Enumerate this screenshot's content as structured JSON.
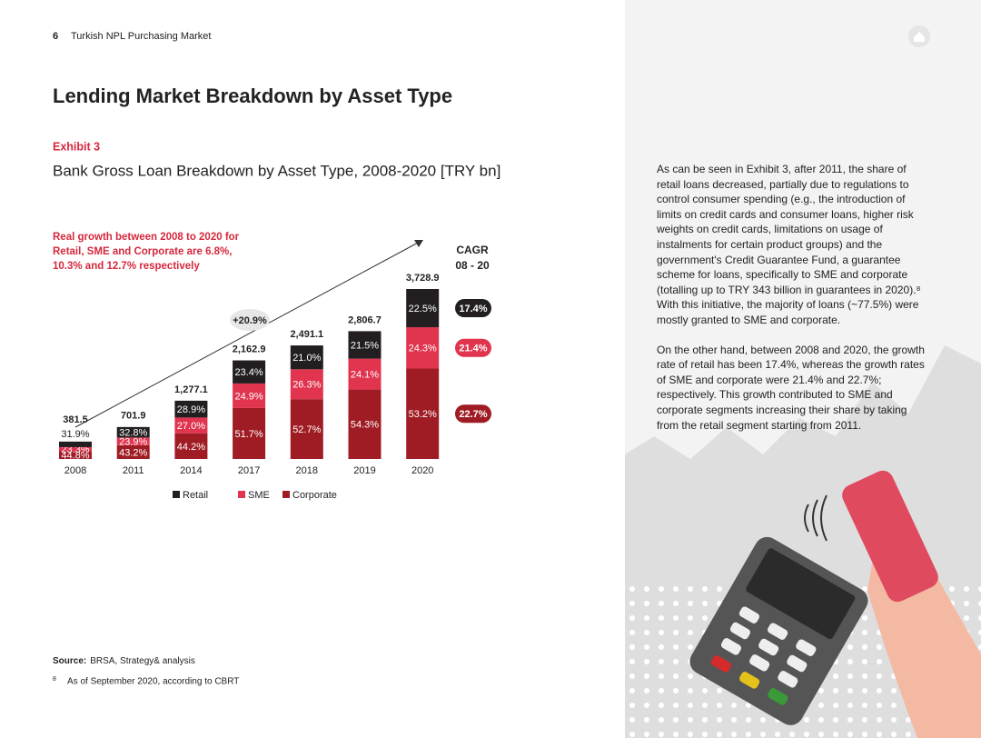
{
  "header": {
    "page_number": "6",
    "title": "Turkish NPL Purchasing Market"
  },
  "title": "Lending Market Breakdown by Asset Type",
  "exhibit": "Exhibit 3",
  "chart_data": {
    "type": "bar",
    "stacked": true,
    "title": "Bank Gross Loan Breakdown by Asset Type, 2008-2020 [TRY bn]",
    "annotation_lines": [
      "Real growth between 2008 to 2020 for",
      "Retail, SME and Corporate are 6.8%,",
      "10.3% and 12.7% respectively"
    ],
    "growth_label": "+20.9%",
    "cagr_title_lines": [
      "CAGR",
      "08 - 20"
    ],
    "categories": [
      "2008",
      "2011",
      "2014",
      "2017",
      "2018",
      "2019",
      "2020"
    ],
    "totals": {
      "values": [
        381.5,
        701.9,
        1277.1,
        2162.9,
        2491.1,
        2806.7,
        3728.9
      ],
      "value_labels": [
        "381.5",
        "701.9",
        "1,277.1",
        "2,162.9",
        "2,491.1",
        "2,806.7",
        "3,728.9"
      ]
    },
    "series": [
      {
        "name": "Retail",
        "color": "#231f20",
        "values": [
          31.9,
          32.8,
          28.9,
          23.4,
          21.0,
          21.5,
          22.5
        ],
        "value_labels": [
          "31.9%",
          "32.8%",
          "28.9%",
          "23.4%",
          "21.0%",
          "21.5%",
          "22.5%"
        ],
        "cagr": 17.4,
        "cagr_label": "17.4%"
      },
      {
        "name": "SME",
        "color": "#e0344f",
        "values": [
          23.3,
          23.9,
          27.0,
          24.9,
          26.3,
          24.1,
          24.3
        ],
        "value_labels": [
          "23.3%",
          "23.9%",
          "27.0%",
          "24.9%",
          "26.3%",
          "24.1%",
          "24.3%"
        ],
        "cagr": 21.4,
        "cagr_label": "21.4%"
      },
      {
        "name": "Corporate",
        "color": "#a01c24",
        "values": [
          44.8,
          43.2,
          44.2,
          51.7,
          52.7,
          54.3,
          53.2
        ],
        "value_labels": [
          "44.8%",
          "43.2%",
          "44.2%",
          "51.7%",
          "52.7%",
          "54.3%",
          "53.2%"
        ],
        "cagr": 22.7,
        "cagr_label": "22.7%"
      }
    ]
  },
  "source": {
    "label": "Source:",
    "text": "BRSA, Strategy& analysis"
  },
  "footnote": {
    "number": "8",
    "text": "As of September 2020, according to CBRT"
  },
  "body": {
    "paragraphs": [
      "As can be seen in Exhibit 3, after 2011, the share of retail loans decreased, partially due to regulations to control consumer spending (e.g., the introduction of limits on credit cards and consumer loans, higher risk weights on credit cards, limitations on usage of instalments for certain product groups) and the government's Credit Guarantee Fund, a guarantee scheme for loans, specifically to SME and corporate (totalling up to TRY 343 billion in guarantees in 2020).⁸ With this initiative, the majority of loans (~77.5%) were mostly granted to SME and corporate.",
      "On the other hand, between 2008 and 2020, the growth rate of retail has been 17.4%, whereas the growth rates of SME and corporate were 21.4% and 22.7%; respectively. This growth contributed to SME and corporate segments increasing their share by taking from the retail segment starting from 2011."
    ]
  }
}
